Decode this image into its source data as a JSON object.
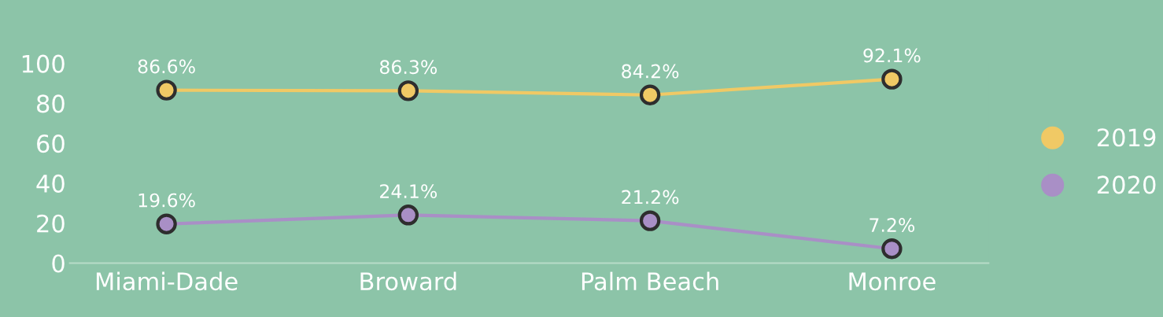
{
  "chart_data": {
    "type": "line",
    "categories": [
      "Miami-Dade",
      "Broward",
      "Palm Beach",
      "Monroe"
    ],
    "series": [
      {
        "name": "2019",
        "color": "#f0c965",
        "values": [
          86.6,
          86.3,
          84.2,
          92.1
        ],
        "value_labels": [
          "86.6%",
          "86.3%",
          "84.2%",
          "92.1%"
        ]
      },
      {
        "name": "2020",
        "color": "#a98fc6",
        "values": [
          19.6,
          24.1,
          21.2,
          7.2
        ],
        "value_labels": [
          "19.6%",
          "24.1%",
          "21.2%",
          "7.2%"
        ]
      }
    ],
    "ylim": [
      0,
      100
    ],
    "yticks": [
      0,
      20,
      40,
      60,
      80,
      100
    ],
    "grid": false,
    "legend": "right",
    "marker": "circle",
    "line_style": "solid"
  }
}
